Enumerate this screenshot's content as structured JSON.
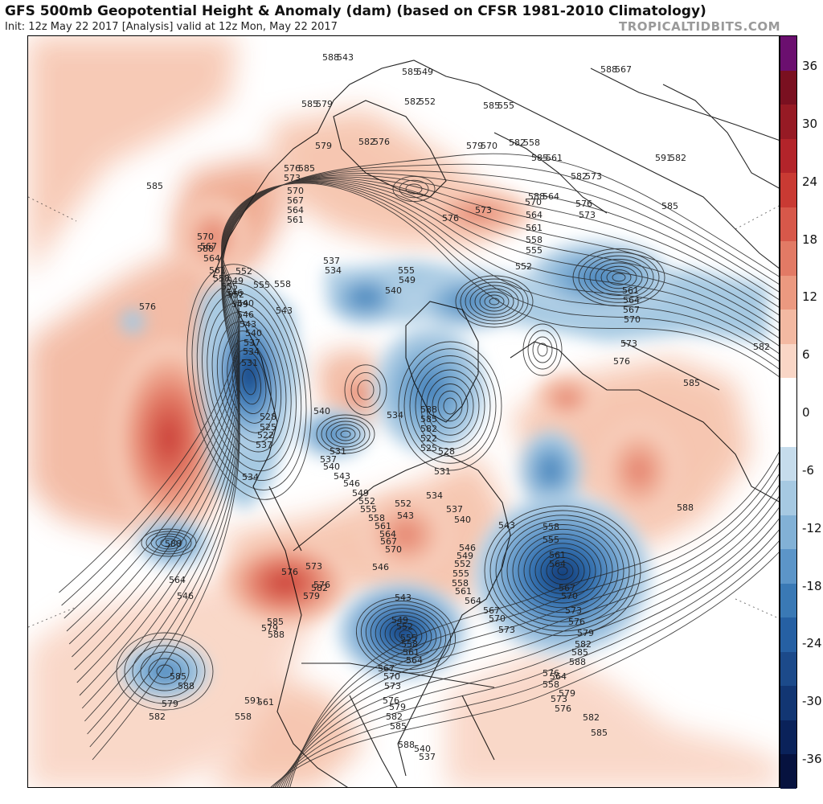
{
  "header": {
    "title": "GFS 500mb Geopotential Height & Anomaly (dam) (based on CFSR 1981-2010 Climatology)",
    "subtitle": "Init: 12z May 22 2017   [Analysis]   valid at 12z Mon, May 22 2017",
    "credit": "TROPICALTIDBITS.COM"
  },
  "colorbar": {
    "ticks": [
      "36",
      "30",
      "24",
      "18",
      "12",
      "6",
      "0",
      "-6",
      "-12",
      "-18",
      "-24",
      "-30",
      "-36"
    ],
    "colors": [
      "#6b0f6f",
      "#7a1020",
      "#961a24",
      "#b3242a",
      "#c93a33",
      "#d7584a",
      "#e27a65",
      "#eb9980",
      "#f3b9a2",
      "#f9d6c6",
      "#ffffff",
      "#ffffff",
      "#c6dcec",
      "#a6c9e2",
      "#82b1d6",
      "#5c95c8",
      "#3a79b5",
      "#2660a3",
      "#1c4a8a",
      "#123673",
      "#0a225a",
      "#06123f"
    ]
  },
  "map": {
    "contour_labels": [
      "588",
      "585",
      "582",
      "585",
      "582",
      "585",
      "588",
      "588",
      "579",
      "582",
      "582",
      "585",
      "591",
      "576",
      "573",
      "570",
      "567",
      "564",
      "561",
      "585",
      "588",
      "579",
      "576",
      "573",
      "570",
      "564",
      "561",
      "558",
      "555",
      "576",
      "573",
      "561",
      "564",
      "567",
      "570",
      "573",
      "576",
      "537",
      "534",
      "555",
      "549",
      "540",
      "552",
      "558",
      "555",
      "549",
      "546",
      "540",
      "543",
      "552",
      "585",
      "576",
      "570",
      "567",
      "564",
      "561",
      "558",
      "555",
      "552",
      "549",
      "546",
      "543",
      "540",
      "537",
      "534",
      "531",
      "528",
      "525",
      "522",
      "537",
      "540",
      "534",
      "531",
      "537",
      "534",
      "540",
      "543",
      "546",
      "549",
      "552",
      "555",
      "558",
      "561",
      "564",
      "567",
      "570",
      "573",
      "576",
      "579",
      "582",
      "585",
      "588",
      "588",
      "585",
      "582",
      "522",
      "525",
      "528",
      "531",
      "534",
      "537",
      "540",
      "543",
      "546",
      "549",
      "552",
      "555",
      "558",
      "561",
      "564",
      "567",
      "570",
      "573",
      "576",
      "579",
      "582",
      "585",
      "588",
      "564",
      "576",
      "582",
      "579",
      "585",
      "588",
      "591",
      "561",
      "558",
      "546",
      "543",
      "552",
      "555",
      "558",
      "561",
      "564",
      "567",
      "570",
      "573",
      "576",
      "579",
      "582",
      "585",
      "588",
      "564",
      "558",
      "573",
      "576",
      "579",
      "582",
      "585",
      "588",
      "546",
      "543",
      "549",
      "552",
      "555",
      "558",
      "561",
      "564",
      "567",
      "570",
      "573",
      "576",
      "579",
      "582",
      "585",
      "588",
      "540",
      "537",
      "543",
      "549",
      "552",
      "555",
      "558",
      "561",
      "564",
      "567",
      "570",
      "573",
      "576",
      "579",
      "582",
      "585"
    ],
    "colorscale": "anomaly dam, red = positive, blue = negative"
  }
}
